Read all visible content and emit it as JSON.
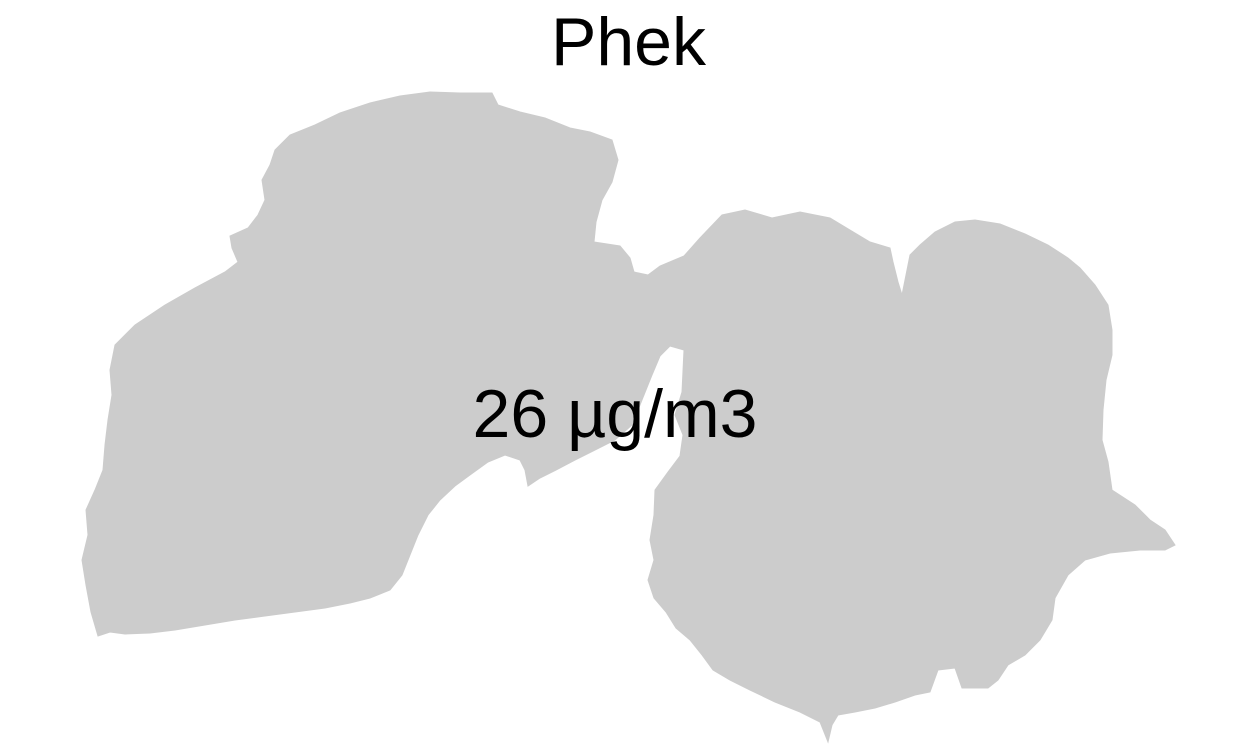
{
  "map": {
    "title": "Phek",
    "value_label": "26 µg/m3",
    "region_fill": "#cccccc",
    "background": "#ffffff"
  }
}
